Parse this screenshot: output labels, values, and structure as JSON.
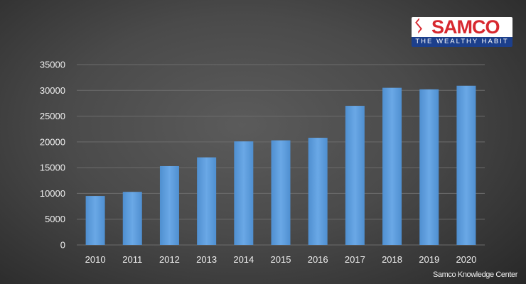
{
  "brand": {
    "symbol": "ᛊ",
    "name": "SAMCO",
    "tagline": "THE WEALTHY HABIT",
    "colors": {
      "red": "#d7282f",
      "blue": "#1c3f8c"
    }
  },
  "credit": "Samco Knowledge Center",
  "chart_data": {
    "type": "bar",
    "categories": [
      "2010",
      "2011",
      "2012",
      "2013",
      "2014",
      "2015",
      "2016",
      "2017",
      "2018",
      "2019",
      "2020"
    ],
    "values": [
      9500,
      10300,
      15300,
      17000,
      20100,
      20300,
      20800,
      27000,
      30500,
      30200,
      30900
    ],
    "yticks": [
      "0",
      "5000",
      "10000",
      "15000",
      "20000",
      "25000",
      "30000",
      "35000"
    ],
    "ylim": [
      0,
      35000
    ],
    "grid": true,
    "bar_color": "#5b9ad8",
    "title": "",
    "xlabel": "",
    "ylabel": ""
  }
}
